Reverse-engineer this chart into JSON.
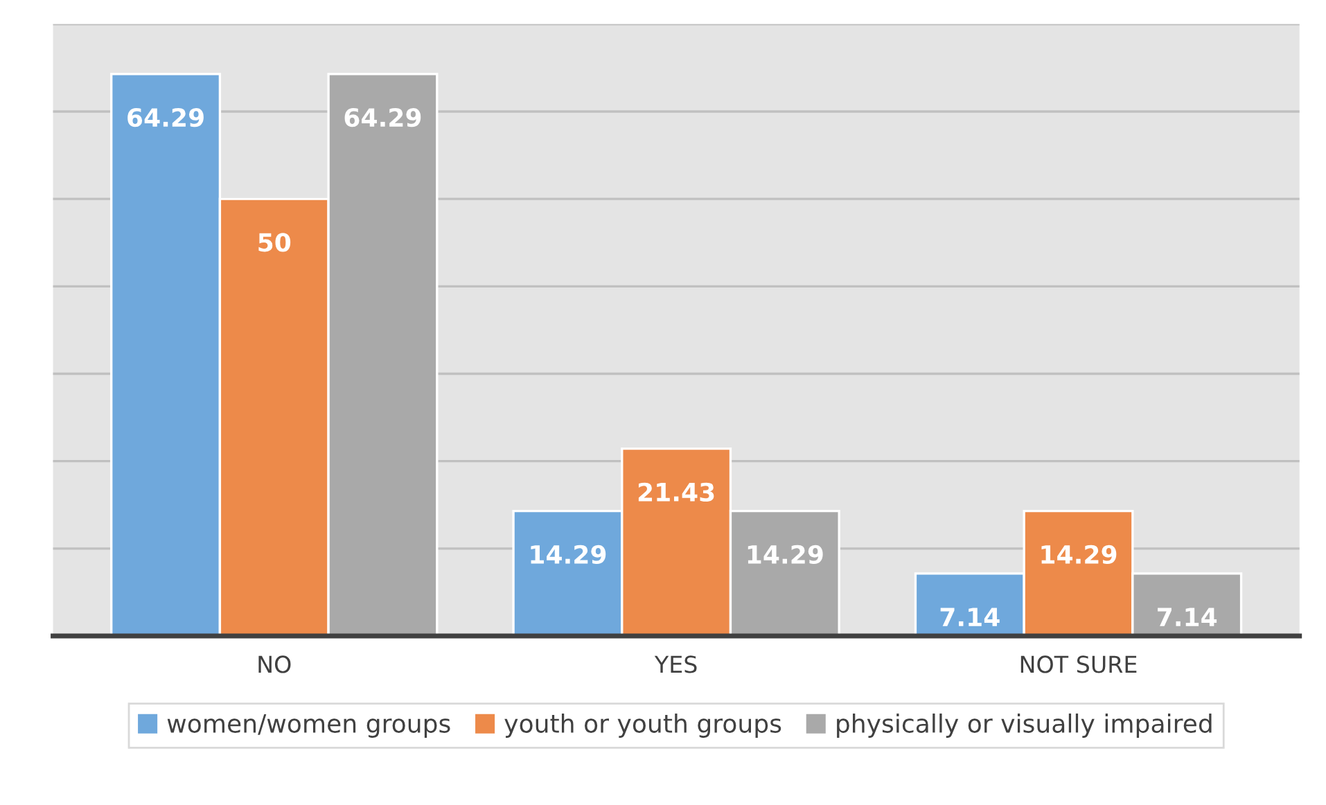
{
  "chart_data": {
    "type": "bar",
    "categories": [
      "NO",
      "YES",
      "NOT SURE"
    ],
    "series": [
      {
        "name": "women/women groups",
        "color": "#6fa8dc",
        "values": [
          64.29,
          14.29,
          7.14
        ]
      },
      {
        "name": "youth or youth groups",
        "color": "#ed8a4a",
        "values": [
          50,
          21.43,
          14.29
        ]
      },
      {
        "name": "physically or visually impaired",
        "color": "#a9a9a9",
        "values": [
          64.29,
          14.29,
          7.14
        ]
      }
    ],
    "ylim": [
      0,
      70
    ],
    "yticks": [
      {
        "value": 0,
        "label": null
      },
      {
        "value": 10,
        "label": null
      },
      {
        "value": 20,
        "label": null
      },
      {
        "value": 30,
        "label": null
      },
      {
        "value": 40,
        "label": null
      },
      {
        "value": 50,
        "label": null
      },
      {
        "value": 60,
        "label": null
      },
      {
        "value": 70,
        "label": null
      }
    ],
    "tick_labels": "x",
    "grid": "y",
    "data_labels": true,
    "legend": "bottom"
  }
}
